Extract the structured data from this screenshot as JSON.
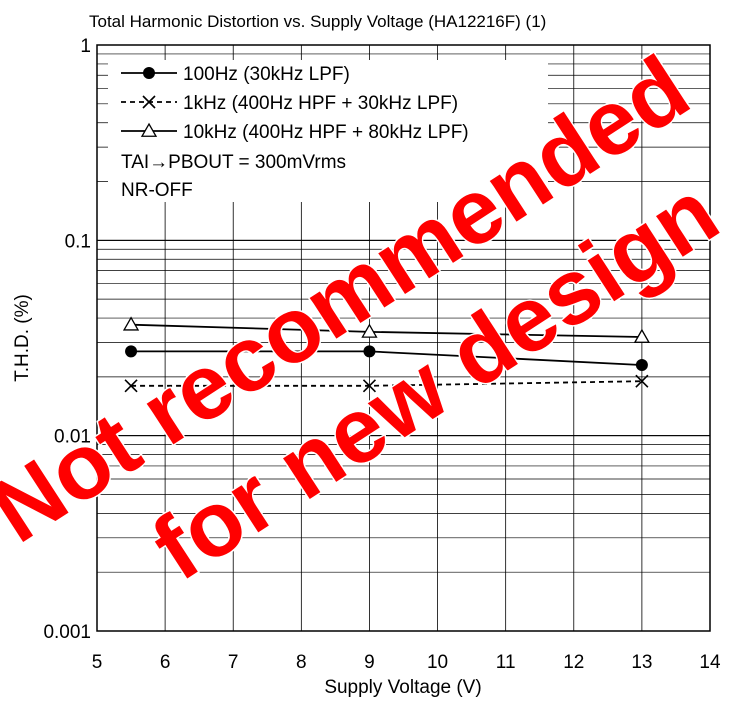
{
  "chart_data": {
    "type": "line",
    "title": "Total Harmonic Distortion vs. Supply Voltage (HA12216F) (1)",
    "xlabel": "Supply Voltage  (V)",
    "ylabel": "T.H.D.  (%)",
    "xlim": [
      5,
      14
    ],
    "ylim": [
      0.001,
      1
    ],
    "yscale": "log",
    "grid": true,
    "x_ticks": [
      "5",
      "6",
      "7",
      "8",
      "9",
      "10",
      "11",
      "12",
      "13",
      "14"
    ],
    "y_ticks": [
      "1",
      "0.1",
      "0.01",
      "0.001"
    ],
    "legend_position": "top-left",
    "series": [
      {
        "name": "100Hz (30kHz LPF)",
        "marker": "filled-circle",
        "dash": "solid",
        "x": [
          5.5,
          9,
          13
        ],
        "y": [
          0.027,
          0.027,
          0.023
        ]
      },
      {
        "name": "1kHz (400Hz HPF + 30kHz LPF)",
        "marker": "cross",
        "dash": "dashed",
        "x": [
          5.5,
          9,
          13
        ],
        "y": [
          0.018,
          0.018,
          0.019
        ]
      },
      {
        "name": "10kHz (400Hz HPF + 80kHz LPF)",
        "marker": "open-triangle",
        "dash": "solid",
        "x": [
          5.5,
          9,
          13
        ],
        "y": [
          0.037,
          0.034,
          0.032
        ]
      }
    ],
    "annotations": [
      "TAI→PBOUT = 300mVrms",
      "NR-OFF"
    ]
  },
  "watermark": {
    "lines": [
      "Not recommended",
      "for new design"
    ],
    "color": "#ff0000"
  }
}
